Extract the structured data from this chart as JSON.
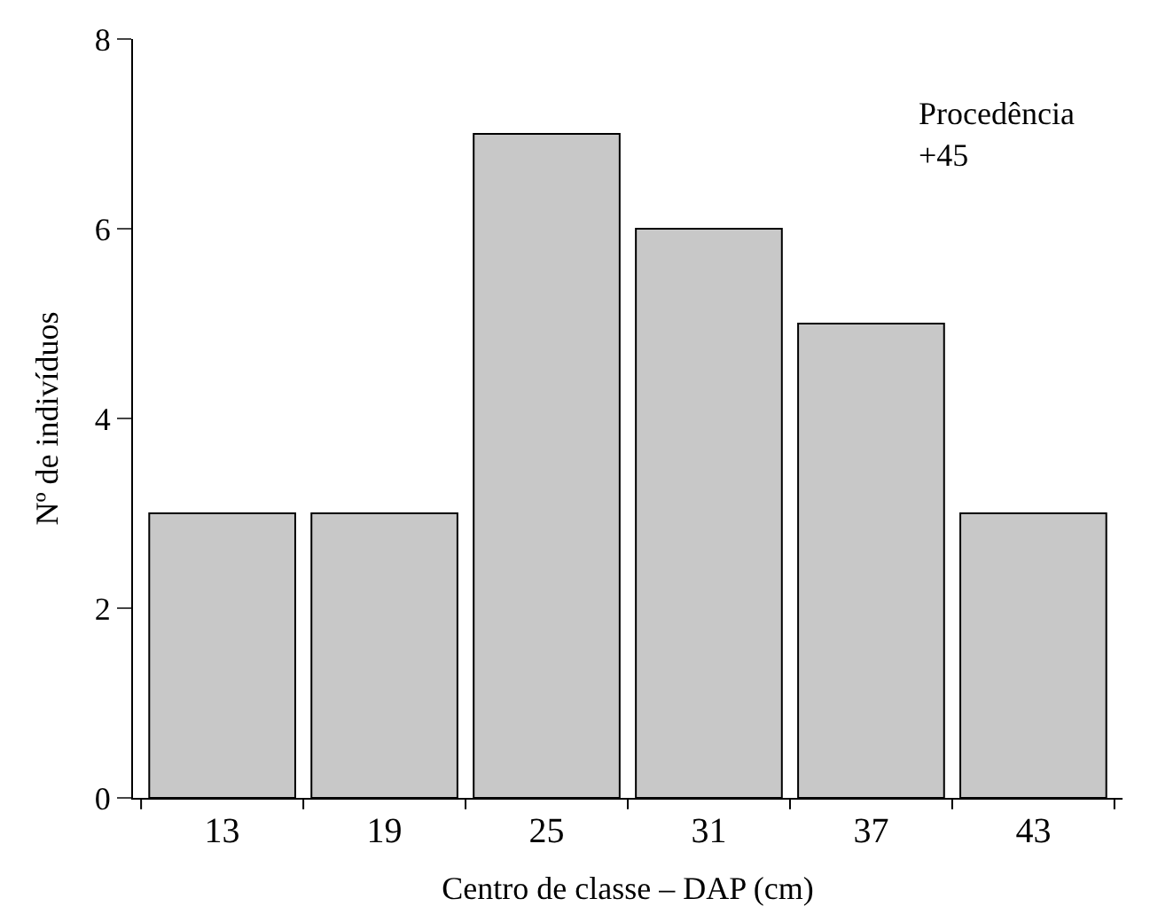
{
  "chart_data": {
    "type": "bar",
    "xlabel": "Centro de classe – DAP (cm)",
    "ylabel": "Nº de indivíduos",
    "categories": [
      "13",
      "19",
      "25",
      "31",
      "37",
      "43"
    ],
    "values": [
      3,
      3,
      7,
      6,
      5,
      3
    ],
    "color": "#c8c8c8",
    "ylim": [
      0,
      8
    ],
    "yticks": [
      0,
      2,
      4,
      6,
      8
    ],
    "annotations": [
      "Procedência\n+45"
    ]
  }
}
